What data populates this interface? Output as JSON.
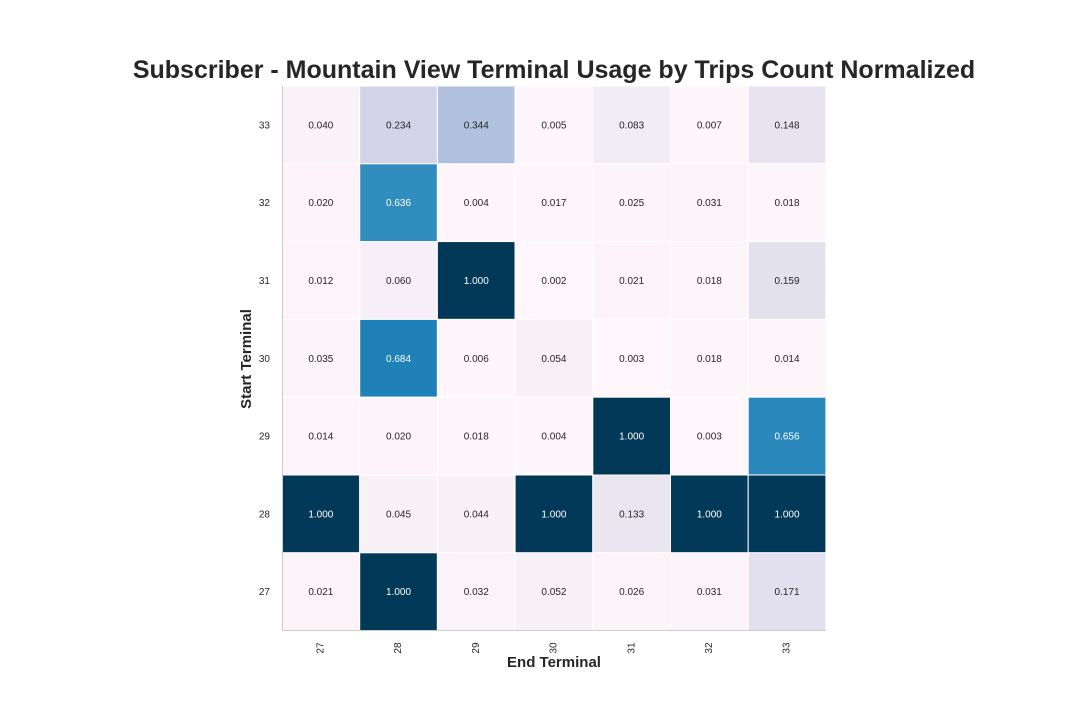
{
  "chart_data": {
    "type": "heatmap",
    "title": "Subscriber - Mountain View Terminal Usage by Trips Count Normalized",
    "xlabel": "End Terminal",
    "ylabel": "Start Terminal",
    "x_categories": [
      "27",
      "28",
      "29",
      "30",
      "31",
      "32",
      "33"
    ],
    "y_categories": [
      "33",
      "32",
      "31",
      "30",
      "29",
      "28",
      "27"
    ],
    "values": [
      [
        0.04,
        0.234,
        0.344,
        0.005,
        0.083,
        0.007,
        0.148
      ],
      [
        0.02,
        0.636,
        0.004,
        0.017,
        0.025,
        0.031,
        0.018
      ],
      [
        0.012,
        0.06,
        1.0,
        0.002,
        0.021,
        0.018,
        0.159
      ],
      [
        0.035,
        0.684,
        0.006,
        0.054,
        0.003,
        0.018,
        0.014
      ],
      [
        0.014,
        0.02,
        0.018,
        0.004,
        1.0,
        0.003,
        0.656
      ],
      [
        1.0,
        0.045,
        0.044,
        1.0,
        0.133,
        1.0,
        1.0
      ],
      [
        0.021,
        1.0,
        0.032,
        0.052,
        0.026,
        0.031,
        0.171
      ]
    ],
    "value_format": "3 decimals",
    "colormap": "PuBu",
    "vmin": 0,
    "vmax": 1,
    "colors": {
      "low": "#fff7fb",
      "mid": "#a6bddb",
      "high": "#023858",
      "gridline": "#ffffff",
      "axis": "#cccccc"
    }
  }
}
